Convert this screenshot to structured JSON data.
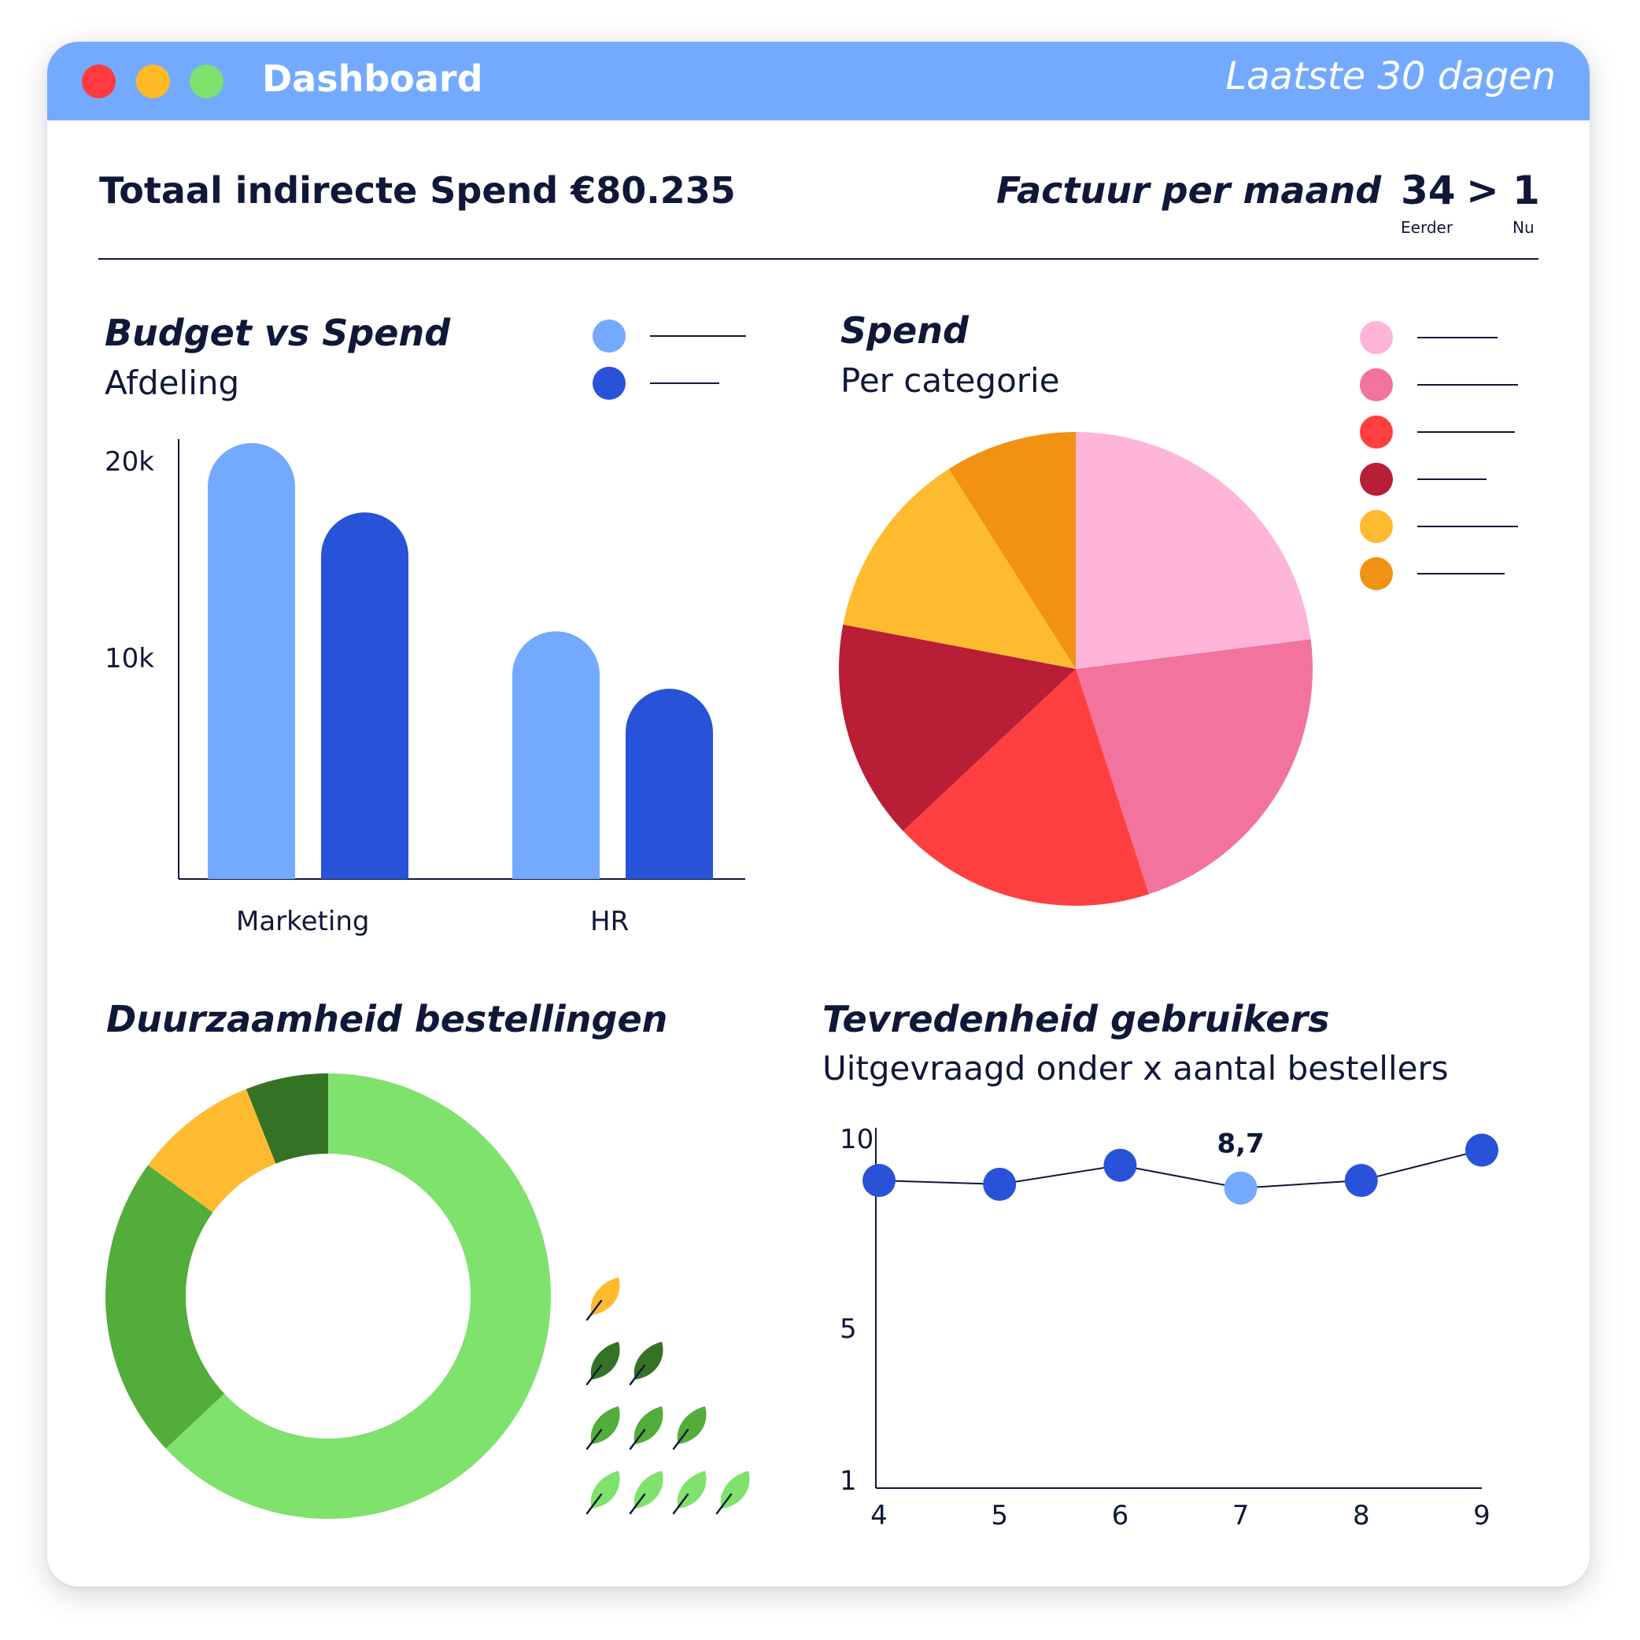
{
  "window": {
    "title": "Dashboard",
    "period": "Laatste 30 dagen"
  },
  "header": {
    "total_spend": "Totaal indirecte Spend €80.235",
    "invoices": {
      "title": "Factuur per maand",
      "before_value": "34",
      "arrow": ">",
      "now_value": "1",
      "before_label": "Eerder",
      "now_label": "Nu"
    }
  },
  "panels": {
    "budget": {
      "title": "Budget vs Spend",
      "subtitle": "Afdeling"
    },
    "spend": {
      "title": "Spend",
      "subtitle": "Per categorie"
    },
    "sustainability": {
      "title": "Duurzaamheid bestellingen"
    },
    "satisfaction": {
      "title": "Tevredenheid gebruikers",
      "subtitle": "Uitgevraagd onder x aantal bestellers"
    }
  },
  "colors": {
    "light_blue": "#73aaff",
    "dark_blue": "#2852d7",
    "pink_light": "#ffb5d8",
    "pink": "#f2749e",
    "red": "#ff3f3f",
    "dark_red": "#b81e35",
    "yellow": "#ffbb30",
    "orange": "#f29212",
    "green_light": "#7fe26c",
    "green": "#52ad3a",
    "green_dark": "#347326"
  },
  "chart_data": [
    {
      "type": "bar",
      "categories": [
        "Marketing",
        "HR"
      ],
      "series": [
        {
          "color": "#73aaff",
          "values": [
            22000,
            12500
          ]
        },
        {
          "color": "#2852d7",
          "values": [
            18500,
            9600
          ]
        }
      ],
      "yticks": [
        "20k",
        "10k"
      ],
      "ytick_values": [
        20000,
        10000
      ],
      "ylim": [
        0,
        22000
      ],
      "legend": "top-right"
    },
    {
      "type": "pie",
      "slices": [
        {
          "value": 23,
          "color": "#ffb5d8"
        },
        {
          "value": 22,
          "color": "#f2749e"
        },
        {
          "value": 18,
          "color": "#ff3f3f"
        },
        {
          "value": 15,
          "color": "#b81e35"
        },
        {
          "value": 13,
          "color": "#ffbb30"
        },
        {
          "value": 9,
          "color": "#f29212"
        }
      ],
      "legend": "right"
    },
    {
      "type": "pie",
      "donut": true,
      "slices": [
        {
          "value": 63,
          "color": "#7fe26c"
        },
        {
          "value": 22,
          "color": "#52ad3a"
        },
        {
          "value": 9,
          "color": "#ffbb30"
        },
        {
          "value": 6,
          "color": "#347326"
        }
      ],
      "leaf_rows": [
        {
          "count": 1,
          "color": "#ffbb30"
        },
        {
          "count": 2,
          "color": "#347326"
        },
        {
          "count": 3,
          "color": "#52ad3a"
        },
        {
          "count": 4,
          "color": "#7fe26c"
        }
      ]
    },
    {
      "type": "line",
      "x": [
        4,
        5,
        6,
        7,
        8,
        9
      ],
      "xticks": [
        "4",
        "5",
        "6",
        "7",
        "8",
        "9"
      ],
      "values": [
        8.9,
        8.8,
        9.3,
        8.7,
        8.9,
        9.7
      ],
      "yticks": [
        "10",
        "5",
        "1"
      ],
      "ytick_values": [
        10,
        5,
        1
      ],
      "ylim": [
        1,
        10
      ],
      "highlight_index": 3,
      "highlight_label": "8,7",
      "point_color": "#2852d7",
      "highlight_color": "#73aaff"
    }
  ]
}
